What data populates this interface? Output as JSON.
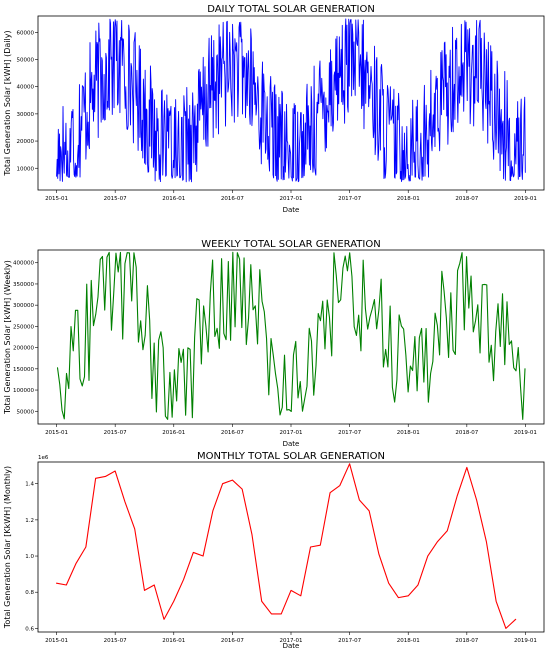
{
  "chart_data": [
    {
      "type": "line",
      "title": "DAILY TOTAL SOLAR GENERATION",
      "xlabel": "Date",
      "ylabel": "Total Generation Solar [kWH] (Daily)",
      "color": "#0000ff",
      "x_ticks": [
        "2015-01",
        "2015-07",
        "2016-01",
        "2016-07",
        "2017-01",
        "2017-07",
        "2018-01",
        "2018-07",
        "2019-01"
      ],
      "y_ticks": [
        10000,
        20000,
        30000,
        40000,
        50000,
        60000
      ],
      "y_tick_labels": [
        "10000",
        "20000",
        "30000",
        "40000",
        "50000",
        "60000"
      ],
      "y_multiplier": "",
      "xlim": [
        "2015-01-01",
        "2019-01-01"
      ],
      "ylim": [
        2000,
        66000
      ],
      "series": [
        {
          "x_start": "2015-01-01",
          "x_end": "2018-12-31",
          "points": 800,
          "min": 5000,
          "max": 65000,
          "seasonal_low": 15000,
          "seasonal_high": 48000
        }
      ]
    },
    {
      "type": "line",
      "title": "WEEKLY TOTAL SOLAR GENERATION",
      "xlabel": "Date",
      "ylabel": "Total Generation Solar [kWH] (Weekly)",
      "color": "#008000",
      "x_ticks": [
        "2015-01",
        "2015-07",
        "2016-01",
        "2016-07",
        "2017-01",
        "2017-07",
        "2018-01",
        "2018-07",
        "2019-01"
      ],
      "y_ticks": [
        50000,
        100000,
        150000,
        200000,
        250000,
        300000,
        350000,
        400000
      ],
      "y_tick_labels": [
        "50000",
        "100000",
        "150000",
        "200000",
        "250000",
        "300000",
        "350000",
        "400000"
      ],
      "y_multiplier": "",
      "xlim": [
        "2015-01-01",
        "2019-01-01"
      ],
      "ylim": [
        20000,
        430000
      ],
      "series": [
        {
          "x_start": "2015-01-04",
          "x_end": "2018-12-30",
          "points": 209,
          "min": 30000,
          "max": 425000,
          "seasonal_low": 125000,
          "seasonal_high": 340000
        }
      ]
    },
    {
      "type": "line",
      "title": "MONTHLY TOTAL SOLAR GENERATION",
      "xlabel": "Date",
      "ylabel": "Total Generation Solar [KkWH] (Monthly)",
      "color": "#ff0000",
      "x_ticks": [
        "2015-01",
        "2015-07",
        "2016-01",
        "2016-07",
        "2017-01",
        "2017-07",
        "2018-01",
        "2018-07",
        "2019-01"
      ],
      "y_ticks": [
        0.6,
        0.8,
        1.0,
        1.2,
        1.4
      ],
      "y_tick_labels": [
        "0.6",
        "0.8",
        "1.0",
        "1.2",
        "1.4"
      ],
      "y_multiplier": "1e6",
      "xlim": [
        "2015-01-01",
        "2019-01-01"
      ],
      "ylim": [
        0.58,
        1.52
      ],
      "series": [
        {
          "x": [
            "2015-01",
            "2015-02",
            "2015-03",
            "2015-04",
            "2015-05",
            "2015-06",
            "2015-07",
            "2015-08",
            "2015-09",
            "2015-10",
            "2015-11",
            "2015-12",
            "2016-01",
            "2016-02",
            "2016-03",
            "2016-04",
            "2016-05",
            "2016-06",
            "2016-07",
            "2016-08",
            "2016-09",
            "2016-10",
            "2016-11",
            "2016-12",
            "2017-01",
            "2017-02",
            "2017-03",
            "2017-04",
            "2017-05",
            "2017-06",
            "2017-07",
            "2017-08",
            "2017-09",
            "2017-10",
            "2017-11",
            "2017-12",
            "2018-01",
            "2018-02",
            "2018-03",
            "2018-04",
            "2018-05",
            "2018-06",
            "2018-07",
            "2018-08",
            "2018-09",
            "2018-10",
            "2018-11",
            "2018-12"
          ],
          "values": [
            0.85,
            0.84,
            0.96,
            1.05,
            1.43,
            1.44,
            1.47,
            1.3,
            1.15,
            0.81,
            0.84,
            0.65,
            0.75,
            0.87,
            1.02,
            1.0,
            1.25,
            1.4,
            1.42,
            1.37,
            1.12,
            0.75,
            0.68,
            0.68,
            0.81,
            0.78,
            1.05,
            1.06,
            1.35,
            1.39,
            1.51,
            1.31,
            1.25,
            1.01,
            0.85,
            0.77,
            0.78,
            0.84,
            1.0,
            1.08,
            1.14,
            1.33,
            1.49,
            1.31,
            1.08,
            0.75,
            0.6,
            0.65
          ]
        }
      ]
    }
  ]
}
